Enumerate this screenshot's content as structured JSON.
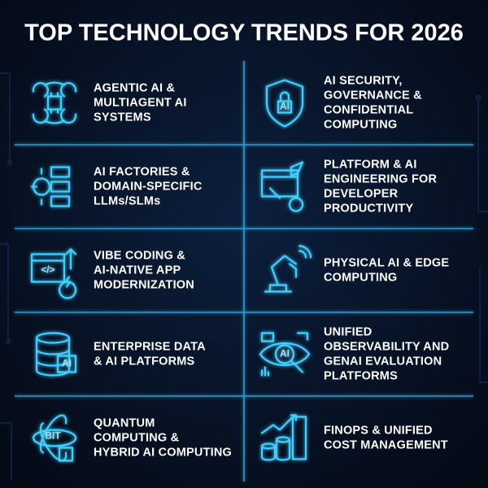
{
  "title": "TOP TECHNOLOGY TRENDS FOR 2026",
  "items": [
    {
      "lines": [
        "AGENTIC AI &",
        "MULTIAGENT AI",
        "SYSTEMS"
      ]
    },
    {
      "lines": [
        "AI SECURITY,",
        "GOVERNANCE &",
        "CONFIDENTIAL",
        "COMPUTING"
      ],
      "icon_text": "AI"
    },
    {
      "lines": [
        "AI FACTORIES &",
        "DOMAIN-SPECIFIC",
        "LLMs/SLMs"
      ]
    },
    {
      "lines": [
        "PLATFORM & AI",
        "ENGINEERING FOR",
        "DEVELOPER",
        "PRODUCTIVITY"
      ]
    },
    {
      "lines": [
        "VIBE CODING &",
        "AI-NATIVE APP",
        "MODERNIZATION"
      ],
      "icon_text": "</>"
    },
    {
      "lines": [
        "PHYSICAL AI & EDGE",
        "COMPUTING"
      ]
    },
    {
      "lines": [
        "ENTERPRISE DATA",
        "& AI PLATFORMS"
      ],
      "icon_text": "AI"
    },
    {
      "lines": [
        "UNIFIED",
        "OBSERVABILITY AND",
        "GENAI EVALUATION",
        "PLATFORMS"
      ],
      "icon_text": "AI"
    },
    {
      "lines": [
        "QUANTUM",
        "COMPUTING &",
        "HYBRID AI COMPUTING"
      ],
      "icon_text": "BIT"
    },
    {
      "lines": [
        "FINOPS & UNIFIED",
        "COST MANAGEMENT"
      ]
    }
  ]
}
